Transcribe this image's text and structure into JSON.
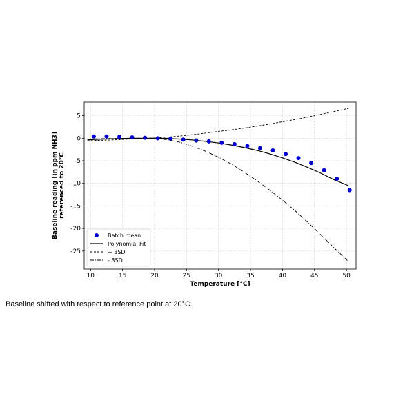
{
  "caption": "Baseline shifted with respect to reference point at 20°C.",
  "chart_data": {
    "type": "line",
    "title": "",
    "xlabel": "Temperature [°C]",
    "ylabel_line1": "Baseline reading [in ppm NH3]",
    "ylabel_line2": "referenced to 20°C",
    "xlim": [
      9,
      51.5
    ],
    "ylim": [
      -29,
      8
    ],
    "xticks": [
      10,
      15,
      20,
      25,
      30,
      35,
      40,
      45,
      50
    ],
    "yticks": [
      5,
      0,
      -5,
      -10,
      -15,
      -20,
      -25
    ],
    "grid": true,
    "legend_position": "lower-left",
    "series": [
      {
        "name": "Batch mean",
        "style": "scatter",
        "color": "#0000cc",
        "x": [
          10.5,
          12.5,
          14.5,
          16.5,
          18.5,
          20.5,
          22.5,
          24.5,
          26.5,
          28.5,
          30.5,
          32.5,
          34.5,
          36.5,
          38.5,
          40.5,
          42.5,
          44.5,
          46.5,
          48.5,
          50.5
        ],
        "y": [
          0.4,
          0.4,
          0.3,
          0.2,
          0.1,
          0.0,
          -0.1,
          -0.3,
          -0.5,
          -0.7,
          -1.0,
          -1.3,
          -1.7,
          -2.2,
          -2.7,
          -3.5,
          -4.4,
          -5.5,
          -7.1,
          -9.0,
          -11.5
        ]
      },
      {
        "name": "Polynomial Fit",
        "style": "solid",
        "color": "#000000",
        "x": [
          9.5,
          12,
          14,
          16,
          18,
          20,
          22,
          24,
          26,
          28,
          30,
          32,
          34,
          36,
          38,
          40,
          42,
          44,
          46,
          48,
          50.3
        ],
        "y": [
          -0.35,
          -0.2,
          -0.1,
          -0.03,
          0.0,
          0.0,
          -0.05,
          -0.2,
          -0.4,
          -0.7,
          -1.05,
          -1.5,
          -2.05,
          -2.7,
          -3.45,
          -4.35,
          -5.35,
          -6.5,
          -7.75,
          -9.15,
          -10.5
        ]
      },
      {
        "name": "+ 3SD",
        "style": "dashed",
        "color": "#000000",
        "x": [
          9.5,
          12,
          14,
          16,
          18,
          20,
          22,
          24,
          26,
          28,
          30,
          32,
          34,
          36,
          38,
          40,
          42,
          44,
          46,
          48,
          50.3
        ],
        "y": [
          -0.55,
          -0.45,
          -0.35,
          -0.2,
          -0.05,
          0.05,
          0.25,
          0.5,
          0.8,
          1.15,
          1.5,
          1.85,
          2.25,
          2.7,
          3.15,
          3.65,
          4.15,
          4.7,
          5.3,
          5.9,
          6.6
        ]
      },
      {
        "name": "- 3SD",
        "style": "dashdot",
        "color": "#000000",
        "x": [
          9.5,
          12,
          14,
          16,
          18,
          20,
          22,
          24,
          26,
          28,
          30,
          32,
          34,
          36,
          38,
          40,
          42,
          44,
          46,
          48,
          50.3
        ],
        "y": [
          -0.2,
          -0.1,
          -0.05,
          0.0,
          0.0,
          -0.05,
          -0.35,
          -0.9,
          -1.8,
          -2.9,
          -4.2,
          -5.7,
          -7.5,
          -9.4,
          -11.5,
          -13.7,
          -16.1,
          -18.7,
          -21.4,
          -24.2,
          -27.3
        ]
      }
    ]
  }
}
